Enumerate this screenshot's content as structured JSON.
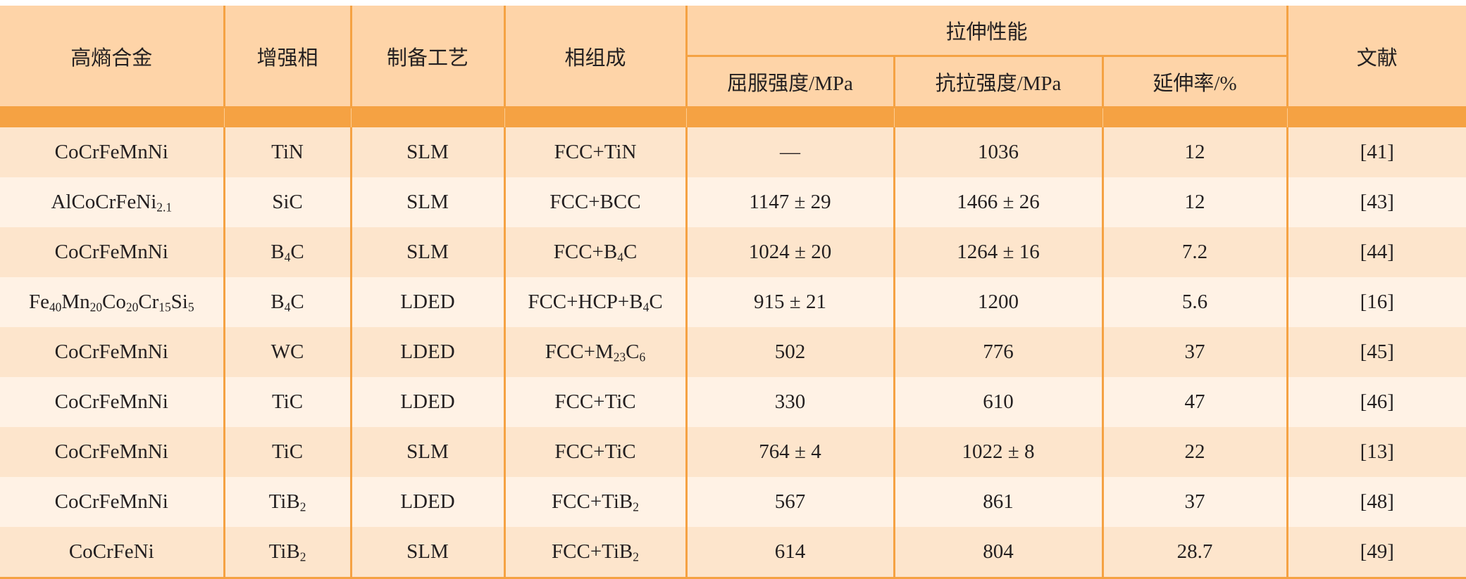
{
  "accent_color": "#f5a243",
  "header_bg": "#fed4a8",
  "row_bg_odd": "#fde5cc",
  "row_bg_even": "#fff2e5",
  "headers": {
    "alloy": "高熵合金",
    "reinforcement": "增强相",
    "process": "制备工艺",
    "phase": "相组成",
    "tensile": "拉伸性能",
    "yield": "屈服强度/MPa",
    "uts": "抗拉强度/MPa",
    "elongation": "延伸率/%",
    "ref": "文献"
  },
  "rows": [
    {
      "alloy": [
        "CoCrFeMnNi"
      ],
      "reinforcement": [
        "TiN"
      ],
      "process": "SLM",
      "phase": [
        "FCC+TiN"
      ],
      "yield": "—",
      "uts": "1036",
      "elongation": "12",
      "ref": "[41]"
    },
    {
      "alloy": [
        "AlCoCrFeNi",
        "2.1"
      ],
      "reinforcement": [
        "SiC"
      ],
      "process": "SLM",
      "phase": [
        "FCC+BCC"
      ],
      "yield": "1147 ± 29",
      "uts": "1466 ± 26",
      "elongation": "12",
      "ref": "[43]"
    },
    {
      "alloy": [
        "CoCrFeMnNi"
      ],
      "reinforcement": [
        "B",
        "4",
        "C"
      ],
      "process": "SLM",
      "phase": [
        "FCC+B",
        "4",
        "C"
      ],
      "yield": "1024 ± 20",
      "uts": "1264 ± 16",
      "elongation": "7.2",
      "ref": "[44]"
    },
    {
      "alloy": [
        "Fe",
        "40",
        "Mn",
        "20",
        "Co",
        "20",
        "Cr",
        "15",
        "Si",
        "5"
      ],
      "reinforcement": [
        "B",
        "4",
        "C"
      ],
      "process": "LDED",
      "phase": [
        "FCC+HCP+B",
        "4",
        "C"
      ],
      "yield": "915 ± 21",
      "uts": "1200",
      "elongation": "5.6",
      "ref": "[16]"
    },
    {
      "alloy": [
        "CoCrFeMnNi"
      ],
      "reinforcement": [
        "WC"
      ],
      "process": "LDED",
      "phase": [
        "FCC+M",
        "23",
        "C",
        "6"
      ],
      "yield": "502",
      "uts": "776",
      "elongation": "37",
      "ref": "[45]"
    },
    {
      "alloy": [
        "CoCrFeMnNi"
      ],
      "reinforcement": [
        "TiC"
      ],
      "process": "LDED",
      "phase": [
        "FCC+TiC"
      ],
      "yield": "330",
      "uts": "610",
      "elongation": "47",
      "ref": "[46]"
    },
    {
      "alloy": [
        "CoCrFeMnNi"
      ],
      "reinforcement": [
        "TiC"
      ],
      "process": "SLM",
      "phase": [
        "FCC+TiC"
      ],
      "yield": "764 ± 4",
      "uts": "1022 ± 8",
      "elongation": "22",
      "ref": "[13]"
    },
    {
      "alloy": [
        "CoCrFeMnNi"
      ],
      "reinforcement": [
        "TiB",
        "2"
      ],
      "process": "LDED",
      "phase": [
        "FCC+TiB",
        "2"
      ],
      "yield": "567",
      "uts": "861",
      "elongation": "37",
      "ref": "[48]"
    },
    {
      "alloy": [
        "CoCrFeNi"
      ],
      "reinforcement": [
        "TiB",
        "2"
      ],
      "process": "SLM",
      "phase": [
        "FCC+TiB",
        "2"
      ],
      "yield": "614",
      "uts": "804",
      "elongation": "28.7",
      "ref": "[49]"
    }
  ]
}
